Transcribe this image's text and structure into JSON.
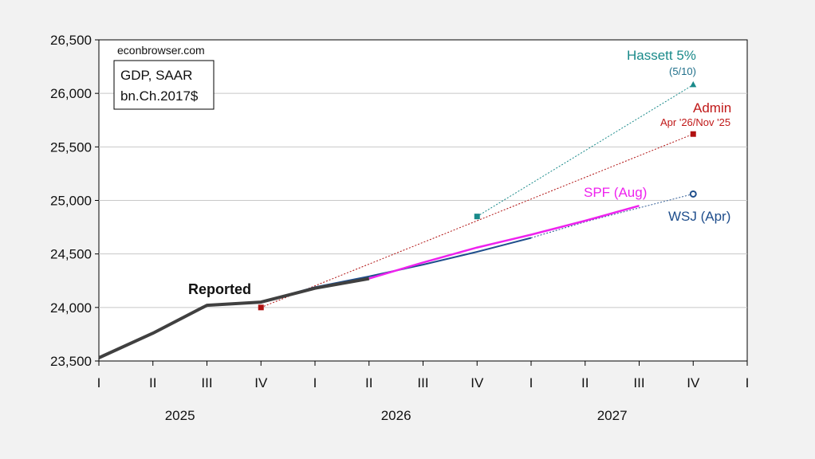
{
  "chart_data": {
    "type": "line",
    "source_label": "econbrowser.com",
    "legend_box": {
      "line1": "GDP, SAAR",
      "line2": "bn.Ch.2017$"
    },
    "ylim": [
      23500,
      26500
    ],
    "yticks": [
      23500,
      24000,
      24500,
      25000,
      25500,
      26000,
      26500
    ],
    "ytick_labels": [
      "23,500",
      "24,000",
      "24,500",
      "25,000",
      "25,500",
      "26,000",
      "26,500"
    ],
    "x_categories": [
      "I",
      "II",
      "III",
      "IV",
      "I",
      "II",
      "III",
      "IV",
      "I",
      "II",
      "III",
      "IV",
      "I"
    ],
    "years": [
      {
        "label": "2025",
        "start": 0
      },
      {
        "label": "2026",
        "start": 4
      },
      {
        "label": "2027",
        "start": 8
      }
    ],
    "series": [
      {
        "name": "Reported",
        "color": "#404040",
        "style": "solid-thick",
        "points": [
          [
            0,
            23530
          ],
          [
            1,
            23760
          ],
          [
            2,
            24020
          ],
          [
            3,
            24050
          ],
          [
            4,
            24180
          ],
          [
            5,
            24270
          ]
        ]
      },
      {
        "name": "WSJ (Apr)",
        "color": "#1f4e8c",
        "style": "solid-then-dotted",
        "solid_until": 8,
        "end_marker": "open-circle",
        "points": [
          [
            3,
            24050
          ],
          [
            4,
            24190
          ],
          [
            5,
            24290
          ],
          [
            6,
            24400
          ],
          [
            7,
            24520
          ],
          [
            8,
            24650
          ],
          [
            9,
            24800
          ],
          [
            10,
            24930
          ],
          [
            11,
            25060
          ]
        ]
      },
      {
        "name": "SPF (Aug)",
        "color": "#ee22ee",
        "style": "solid",
        "points": [
          [
            5,
            24270
          ],
          [
            6,
            24420
          ],
          [
            7,
            24560
          ],
          [
            8,
            24680
          ],
          [
            9,
            24810
          ],
          [
            10,
            24950
          ]
        ]
      },
      {
        "name": "Admin",
        "sublabel": "Apr '26/Nov '25",
        "color": "#b01010",
        "style": "dotted",
        "end_marker": "square",
        "start_marker": "square",
        "points": [
          [
            3,
            24000
          ],
          [
            11,
            25620
          ]
        ]
      },
      {
        "name": "Hassett 5%",
        "sublabel": "(5/10)",
        "color": "#1a8a8a",
        "style": "dotted",
        "end_marker": "triangle",
        "start_marker": "square",
        "points": [
          [
            7,
            24850
          ],
          [
            11,
            26080
          ]
        ]
      }
    ],
    "annotations": {
      "reported": "Reported",
      "spf": "SPF (Aug)",
      "wsj": "WSJ (Apr)",
      "admin": "Admin",
      "admin_sub": "Apr '26/Nov '25",
      "hassett": "Hassett 5%",
      "hassett_sub": "(5/10)"
    },
    "grid": "horizontal",
    "legend": "none"
  }
}
